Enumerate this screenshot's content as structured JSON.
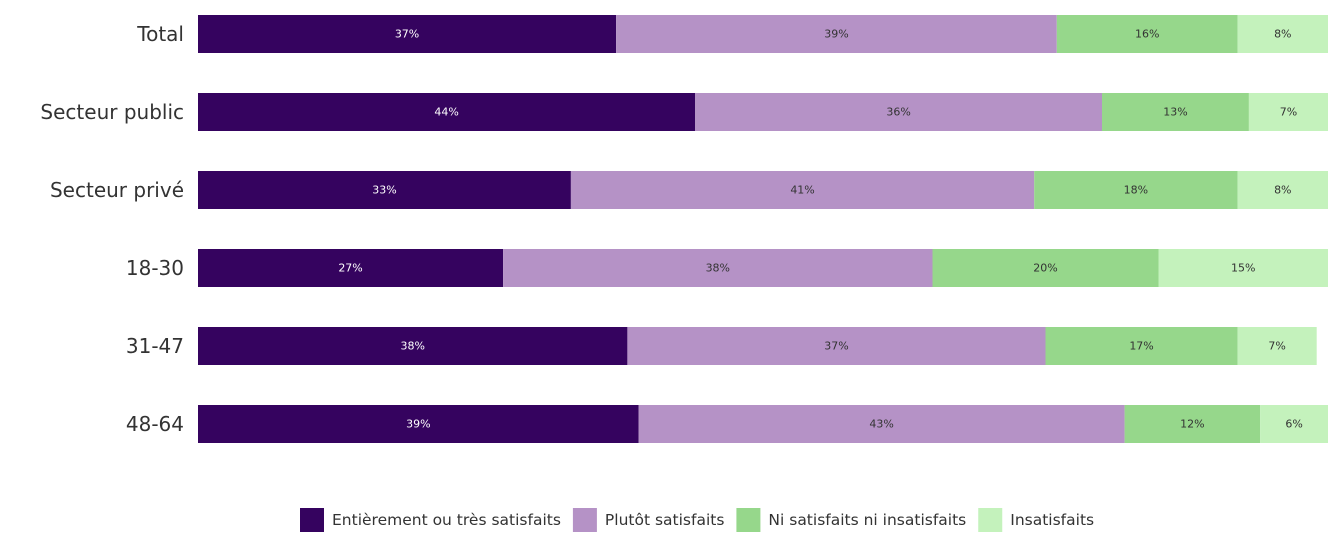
{
  "chart_data": {
    "type": "bar",
    "orientation": "horizontal",
    "stacked": true,
    "categories": [
      "Total",
      "Secteur public",
      "Secteur privé",
      "18-30",
      "31-47",
      "48-64"
    ],
    "series": [
      {
        "name": "Entièrement ou très satisfaits",
        "color": "#35035f",
        "label_color": "#ffffff",
        "values": [
          37,
          44,
          33,
          27,
          38,
          39
        ],
        "labels": [
          "37%",
          "44%",
          "33%",
          "27%",
          "38%",
          "39%"
        ]
      },
      {
        "name": "Plutôt satisfaits",
        "color": "#b592c6",
        "label_color": "#333333",
        "values": [
          39,
          36,
          41,
          38,
          37,
          43
        ],
        "labels": [
          "39%",
          "36%",
          "41%",
          "38%",
          "37%",
          "43%"
        ]
      },
      {
        "name": "Ni satisfaits ni insatisfaits",
        "color": "#96d78b",
        "label_color": "#333333",
        "values": [
          16,
          13,
          18,
          20,
          17,
          12
        ],
        "labels": [
          "16%",
          "13%",
          "18%",
          "20%",
          "17%",
          "12%"
        ]
      },
      {
        "name": "Insatisfaits",
        "color": "#c4f2bc",
        "label_color": "#333333",
        "values": [
          8,
          7,
          8,
          15,
          7,
          6
        ],
        "labels": [
          "8%",
          "7%",
          "8%",
          "15%",
          "7%",
          "6%"
        ]
      }
    ],
    "xlim": [
      0,
      100
    ],
    "grid": false,
    "legend_position": "bottom"
  }
}
